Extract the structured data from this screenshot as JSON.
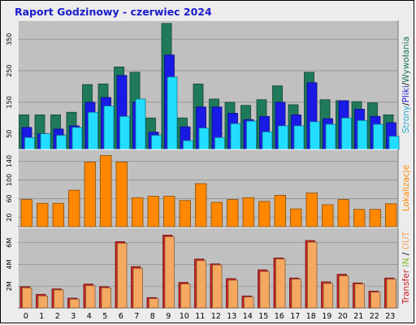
{
  "title": "Raport Godzinowy -  czerwiec 2024",
  "chart_data": [
    {
      "type": "bar",
      "categories": [
        "0",
        "1",
        "2",
        "3",
        "4",
        "5",
        "6",
        "7",
        "8",
        "9",
        "10",
        "11",
        "12",
        "13",
        "14",
        "15",
        "16",
        "17",
        "18",
        "19",
        "20",
        "21",
        "22",
        "23"
      ],
      "yticks": [
        "50",
        "150",
        "250",
        "350"
      ],
      "ylim": [
        0,
        410
      ],
      "side_label": [
        "Strony",
        "/",
        "Pliki",
        "/",
        "Wywołania"
      ],
      "side_colors": [
        "#22aacc",
        "#000000",
        "#1a1acc",
        "#000000",
        "#1a7755"
      ],
      "series": [
        {
          "name": "Wywołania",
          "color": "#1f7a5a",
          "values": [
            110,
            110,
            110,
            118,
            206,
            208,
            262,
            245,
            100,
            400,
            100,
            208,
            160,
            150,
            140,
            158,
            202,
            142,
            245,
            158,
            155,
            152,
            148,
            110
          ]
        },
        {
          "name": "Pliki",
          "color": "#1a1ae6",
          "values": [
            70,
            50,
            65,
            75,
            150,
            165,
            235,
            150,
            55,
            300,
            72,
            135,
            135,
            115,
            95,
            105,
            150,
            110,
            212,
            98,
            155,
            128,
            105,
            85
          ]
        },
        {
          "name": "Strony",
          "color": "#22ddff",
          "values": [
            38,
            50,
            45,
            70,
            118,
            138,
            105,
            160,
            45,
            230,
            28,
            68,
            38,
            82,
            90,
            56,
            75,
            75,
            88,
            80,
            100,
            92,
            80,
            42
          ]
        }
      ]
    },
    {
      "type": "bar",
      "categories": [
        "0",
        "1",
        "2",
        "3",
        "4",
        "5",
        "6",
        "7",
        "8",
        "9",
        "10",
        "11",
        "12",
        "13",
        "14",
        "15",
        "16",
        "17",
        "18",
        "19",
        "20",
        "21",
        "22",
        "23"
      ],
      "yticks": [
        "20",
        "60",
        "100",
        "140"
      ],
      "ylim": [
        0,
        165
      ],
      "side_label": [
        "Lokalizacje"
      ],
      "side_colors": [
        "#ff8800"
      ],
      "series": [
        {
          "name": "Lokalizacje",
          "color": "#ff8800",
          "values": [
            58,
            50,
            50,
            78,
            138,
            152,
            138,
            62,
            65,
            65,
            56,
            92,
            52,
            58,
            62,
            54,
            67,
            38,
            72,
            47,
            58,
            37,
            37,
            49
          ]
        }
      ]
    },
    {
      "type": "bar",
      "categories": [
        "0",
        "1",
        "2",
        "3",
        "4",
        "5",
        "6",
        "7",
        "8",
        "9",
        "10",
        "11",
        "12",
        "13",
        "14",
        "15",
        "16",
        "17",
        "18",
        "19",
        "20",
        "21",
        "22",
        "23"
      ],
      "yticks": [
        "2M",
        "4M",
        "6M"
      ],
      "ylim": [
        0,
        7.4
      ],
      "side_label": [
        "Transfer",
        " ",
        "IN",
        " / ",
        "OUT"
      ],
      "side_colors": [
        "#cc2222",
        "#000000",
        "#88bb33",
        "#000000",
        "#f5a860"
      ],
      "series": [
        {
          "name": "Transfer",
          "color": "#cc2222",
          "values": [
            1.95,
            1.25,
            1.75,
            0.9,
            2.2,
            1.95,
            6.1,
            3.8,
            0.95,
            6.7,
            2.35,
            4.5,
            4.05,
            2.7,
            1.1,
            3.5,
            4.6,
            2.75,
            6.2,
            2.4,
            3.1,
            2.3,
            1.55,
            2.75
          ]
        },
        {
          "name": "OUT",
          "color": "#f5a860",
          "values": [
            1.85,
            1.1,
            1.65,
            0.8,
            2.05,
            1.85,
            5.95,
            3.65,
            0.85,
            6.55,
            2.2,
            4.35,
            3.95,
            2.55,
            1.0,
            3.35,
            4.5,
            2.65,
            6.05,
            2.25,
            2.95,
            2.2,
            1.45,
            2.65
          ]
        }
      ]
    }
  ]
}
